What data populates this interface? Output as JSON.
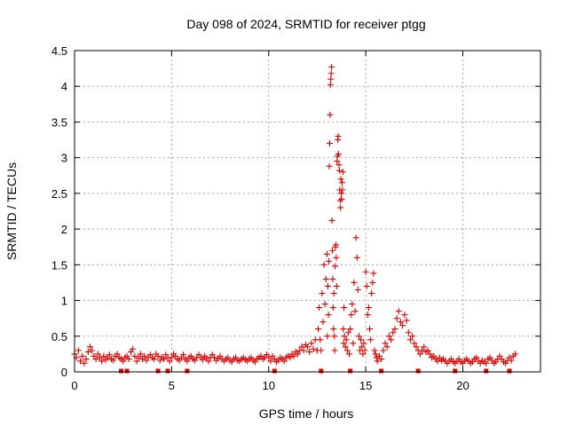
{
  "chart_data": {
    "type": "scatter",
    "title": "Day 098 of 2024, SRMTID for receiver ptgg",
    "xlabel": "GPS time / hours",
    "ylabel": "SRMTID / TECUs",
    "xlim": [
      0,
      24
    ],
    "ylim": [
      0,
      4.5
    ],
    "x_ticks": [
      0,
      5,
      10,
      15,
      20
    ],
    "x_tick_labels": [
      "0",
      "5",
      "10",
      "15",
      "20"
    ],
    "y_ticks": [
      0,
      0.5,
      1,
      1.5,
      2,
      2.5,
      3,
      3.5,
      4,
      4.5
    ],
    "y_tick_labels": [
      "0",
      "0.5",
      "1",
      "1.5",
      "2",
      "2.5",
      "3",
      "3.5",
      "4",
      "4.5"
    ],
    "grid": true,
    "marker": "plus",
    "series_color": "#e00000",
    "series": [
      {
        "name": "SRMTID",
        "points": [
          [
            0.0,
            0.25
          ],
          [
            0.1,
            0.2
          ],
          [
            0.2,
            0.3
          ],
          [
            0.3,
            0.15
          ],
          [
            0.4,
            0.22
          ],
          [
            0.5,
            0.12
          ],
          [
            0.6,
            0.18
          ],
          [
            0.7,
            0.28
          ],
          [
            0.8,
            0.35
          ],
          [
            0.9,
            0.3
          ],
          [
            1.0,
            0.22
          ],
          [
            1.1,
            0.18
          ],
          [
            1.2,
            0.25
          ],
          [
            1.3,
            0.2
          ],
          [
            1.4,
            0.15
          ],
          [
            1.5,
            0.22
          ],
          [
            1.6,
            0.17
          ],
          [
            1.7,
            0.2
          ],
          [
            1.8,
            0.24
          ],
          [
            1.9,
            0.18
          ],
          [
            2.0,
            0.16
          ],
          [
            2.1,
            0.22
          ],
          [
            2.2,
            0.25
          ],
          [
            2.3,
            0.2
          ],
          [
            2.4,
            0.18
          ],
          [
            2.5,
            0.15
          ],
          [
            2.6,
            0.2
          ],
          [
            2.7,
            0.22
          ],
          [
            2.8,
            0.18
          ],
          [
            2.9,
            0.28
          ],
          [
            3.0,
            0.32
          ],
          [
            3.1,
            0.22
          ],
          [
            3.2,
            0.15
          ],
          [
            3.3,
            0.2
          ],
          [
            3.4,
            0.25
          ],
          [
            3.5,
            0.18
          ],
          [
            3.6,
            0.22
          ],
          [
            3.7,
            0.16
          ],
          [
            3.8,
            0.2
          ],
          [
            3.9,
            0.24
          ],
          [
            4.0,
            0.2
          ],
          [
            4.1,
            0.18
          ],
          [
            4.2,
            0.25
          ],
          [
            4.3,
            0.22
          ],
          [
            4.4,
            0.16
          ],
          [
            4.5,
            0.2
          ],
          [
            4.6,
            0.18
          ],
          [
            4.7,
            0.24
          ],
          [
            4.8,
            0.2
          ],
          [
            4.9,
            0.15
          ],
          [
            5.0,
            0.2
          ],
          [
            5.1,
            0.25
          ],
          [
            5.2,
            0.22
          ],
          [
            5.3,
            0.18
          ],
          [
            5.4,
            0.16
          ],
          [
            5.5,
            0.2
          ],
          [
            5.6,
            0.24
          ],
          [
            5.7,
            0.18
          ],
          [
            5.8,
            0.15
          ],
          [
            5.9,
            0.2
          ],
          [
            6.0,
            0.22
          ],
          [
            6.1,
            0.18
          ],
          [
            6.2,
            0.16
          ],
          [
            6.3,
            0.2
          ],
          [
            6.4,
            0.24
          ],
          [
            6.5,
            0.2
          ],
          [
            6.6,
            0.17
          ],
          [
            6.7,
            0.22
          ],
          [
            6.8,
            0.19
          ],
          [
            6.9,
            0.15
          ],
          [
            7.0,
            0.2
          ],
          [
            7.1,
            0.24
          ],
          [
            7.2,
            0.2
          ],
          [
            7.3,
            0.16
          ],
          [
            7.4,
            0.19
          ],
          [
            7.5,
            0.22
          ],
          [
            7.6,
            0.18
          ],
          [
            7.7,
            0.15
          ],
          [
            7.8,
            0.18
          ],
          [
            7.9,
            0.2
          ],
          [
            8.0,
            0.16
          ],
          [
            8.1,
            0.14
          ],
          [
            8.2,
            0.18
          ],
          [
            8.3,
            0.2
          ],
          [
            8.4,
            0.16
          ],
          [
            8.5,
            0.15
          ],
          [
            8.6,
            0.18
          ],
          [
            8.7,
            0.2
          ],
          [
            8.8,
            0.17
          ],
          [
            8.9,
            0.15
          ],
          [
            9.0,
            0.18
          ],
          [
            9.1,
            0.2
          ],
          [
            9.2,
            0.16
          ],
          [
            9.3,
            0.14
          ],
          [
            9.4,
            0.18
          ],
          [
            9.5,
            0.2
          ],
          [
            9.6,
            0.22
          ],
          [
            9.7,
            0.18
          ],
          [
            9.8,
            0.2
          ],
          [
            9.9,
            0.24
          ],
          [
            10.0,
            0.2
          ],
          [
            10.1,
            0.15
          ],
          [
            10.2,
            0.22
          ],
          [
            10.3,
            0.18
          ],
          [
            10.4,
            0.14
          ],
          [
            10.5,
            0.16
          ],
          [
            10.6,
            0.2
          ],
          [
            10.7,
            0.18
          ],
          [
            10.8,
            0.15
          ],
          [
            10.9,
            0.2
          ],
          [
            11.0,
            0.22
          ],
          [
            11.1,
            0.2
          ],
          [
            11.2,
            0.25
          ],
          [
            11.3,
            0.22
          ],
          [
            11.4,
            0.28
          ],
          [
            11.5,
            0.25
          ],
          [
            11.6,
            0.3
          ],
          [
            11.7,
            0.35
          ],
          [
            11.8,
            0.3
          ],
          [
            11.9,
            0.38
          ],
          [
            12.0,
            0.35
          ],
          [
            12.1,
            0.28
          ],
          [
            12.2,
            0.4
          ],
          [
            12.3,
            0.32
          ],
          [
            12.4,
            0.45
          ],
          [
            12.5,
            0.3
          ],
          [
            12.55,
            0.6
          ],
          [
            12.6,
            0.9
          ],
          [
            12.65,
            0.45
          ],
          [
            12.7,
            0.3
          ],
          [
            12.75,
            1.1
          ],
          [
            12.8,
            0.7
          ],
          [
            12.85,
            1.5
          ],
          [
            12.9,
            0.95
          ],
          [
            12.95,
            1.3
          ],
          [
            13.0,
            1.65
          ],
          [
            13.02,
            0.5
          ],
          [
            13.05,
            1.2
          ],
          [
            13.08,
            0.8
          ],
          [
            13.1,
            1.55
          ],
          [
            13.12,
            2.88
          ],
          [
            13.14,
            3.2
          ],
          [
            13.16,
            3.6
          ],
          [
            13.18,
            4.02
          ],
          [
            13.2,
            4.1
          ],
          [
            13.22,
            4.18
          ],
          [
            13.24,
            4.27
          ],
          [
            13.26,
            2.12
          ],
          [
            13.28,
            1.7
          ],
          [
            13.3,
            1.3
          ],
          [
            13.32,
            0.9
          ],
          [
            13.34,
            0.6
          ],
          [
            13.36,
            1.1
          ],
          [
            13.38,
            0.5
          ],
          [
            13.4,
            0.3
          ],
          [
            13.42,
            1.48
          ],
          [
            13.44,
            1.75
          ],
          [
            13.46,
            1.78
          ],
          [
            13.48,
            1.6
          ],
          [
            13.5,
            1.2
          ],
          [
            13.52,
            2.95
          ],
          [
            13.54,
            3.02
          ],
          [
            13.56,
            3.25
          ],
          [
            13.58,
            3.3
          ],
          [
            13.6,
            3.05
          ],
          [
            13.62,
            2.9
          ],
          [
            13.64,
            2.82
          ],
          [
            13.66,
            2.55
          ],
          [
            13.68,
            2.4
          ],
          [
            13.7,
            2.3
          ],
          [
            13.72,
            2.7
          ],
          [
            13.74,
            2.5
          ],
          [
            13.76,
            2.42
          ],
          [
            13.78,
            2.65
          ],
          [
            13.8,
            2.55
          ],
          [
            13.82,
            2.8
          ],
          [
            13.84,
            0.6
          ],
          [
            13.86,
            0.4
          ],
          [
            13.88,
            0.9
          ],
          [
            13.9,
            0.5
          ],
          [
            13.95,
            0.35
          ],
          [
            14.0,
            0.45
          ],
          [
            14.05,
            0.3
          ],
          [
            14.1,
            0.55
          ],
          [
            14.15,
            0.25
          ],
          [
            14.2,
            0.6
          ],
          [
            14.25,
            0.8
          ],
          [
            14.3,
            0.95
          ],
          [
            14.35,
            0.4
          ],
          [
            14.4,
            1.25
          ],
          [
            14.45,
            0.85
          ],
          [
            14.5,
            1.88
          ],
          [
            14.55,
            1.6
          ],
          [
            14.6,
            1.15
          ],
          [
            14.65,
            0.5
          ],
          [
            14.7,
            0.3
          ],
          [
            14.75,
            0.45
          ],
          [
            14.8,
            0.35
          ],
          [
            14.85,
            0.25
          ],
          [
            14.9,
            0.4
          ],
          [
            14.95,
            0.3
          ],
          [
            15.0,
            1.4
          ],
          [
            15.05,
            1.2
          ],
          [
            15.1,
            0.8
          ],
          [
            15.15,
            0.9
          ],
          [
            15.2,
            0.6
          ],
          [
            15.25,
            0.45
          ],
          [
            15.3,
            1.1
          ],
          [
            15.35,
            1.25
          ],
          [
            15.4,
            1.38
          ],
          [
            15.45,
            0.3
          ],
          [
            15.5,
            0.25
          ],
          [
            15.55,
            0.2
          ],
          [
            15.6,
            0.15
          ],
          [
            15.7,
            0.22
          ],
          [
            15.8,
            0.18
          ],
          [
            15.9,
            0.3
          ],
          [
            16.0,
            0.4
          ],
          [
            16.1,
            0.35
          ],
          [
            16.2,
            0.5
          ],
          [
            16.3,
            0.45
          ],
          [
            16.4,
            0.55
          ],
          [
            16.5,
            0.6
          ],
          [
            16.6,
            0.75
          ],
          [
            16.7,
            0.85
          ],
          [
            16.8,
            0.7
          ],
          [
            16.9,
            0.65
          ],
          [
            17.0,
            0.8
          ],
          [
            17.1,
            0.72
          ],
          [
            17.2,
            0.55
          ],
          [
            17.3,
            0.45
          ],
          [
            17.4,
            0.5
          ],
          [
            17.5,
            0.4
          ],
          [
            17.6,
            0.35
          ],
          [
            17.7,
            0.3
          ],
          [
            17.8,
            0.25
          ],
          [
            17.9,
            0.3
          ],
          [
            18.0,
            0.35
          ],
          [
            18.1,
            0.28
          ],
          [
            18.2,
            0.3
          ],
          [
            18.3,
            0.25
          ],
          [
            18.4,
            0.2
          ],
          [
            18.5,
            0.22
          ],
          [
            18.6,
            0.18
          ],
          [
            18.7,
            0.15
          ],
          [
            18.8,
            0.2
          ],
          [
            18.9,
            0.16
          ],
          [
            19.0,
            0.18
          ],
          [
            19.1,
            0.15
          ],
          [
            19.2,
            0.12
          ],
          [
            19.3,
            0.15
          ],
          [
            19.4,
            0.18
          ],
          [
            19.5,
            0.14
          ],
          [
            19.6,
            0.12
          ],
          [
            19.7,
            0.15
          ],
          [
            19.8,
            0.18
          ],
          [
            19.9,
            0.14
          ],
          [
            20.0,
            0.12
          ],
          [
            20.1,
            0.16
          ],
          [
            20.2,
            0.18
          ],
          [
            20.3,
            0.15
          ],
          [
            20.4,
            0.12
          ],
          [
            20.5,
            0.14
          ],
          [
            20.6,
            0.18
          ],
          [
            20.7,
            0.2
          ],
          [
            20.8,
            0.15
          ],
          [
            20.9,
            0.12
          ],
          [
            21.0,
            0.16
          ],
          [
            21.1,
            0.14
          ],
          [
            21.2,
            0.12
          ],
          [
            21.3,
            0.18
          ],
          [
            21.4,
            0.2
          ],
          [
            21.5,
            0.16
          ],
          [
            21.6,
            0.12
          ],
          [
            21.7,
            0.14
          ],
          [
            21.8,
            0.18
          ],
          [
            21.9,
            0.22
          ],
          [
            22.0,
            0.18
          ],
          [
            22.1,
            0.14
          ],
          [
            22.2,
            0.12
          ],
          [
            22.3,
            0.16
          ],
          [
            22.4,
            0.2
          ],
          [
            22.5,
            0.16
          ],
          [
            22.6,
            0.22
          ],
          [
            22.7,
            0.25
          ]
        ],
        "zero_points": [
          2.4,
          2.7,
          4.3,
          4.8,
          5.8,
          10.3,
          12.7,
          14.2,
          15.8,
          17.7,
          19.6,
          21.2,
          22.4
        ]
      }
    ]
  }
}
